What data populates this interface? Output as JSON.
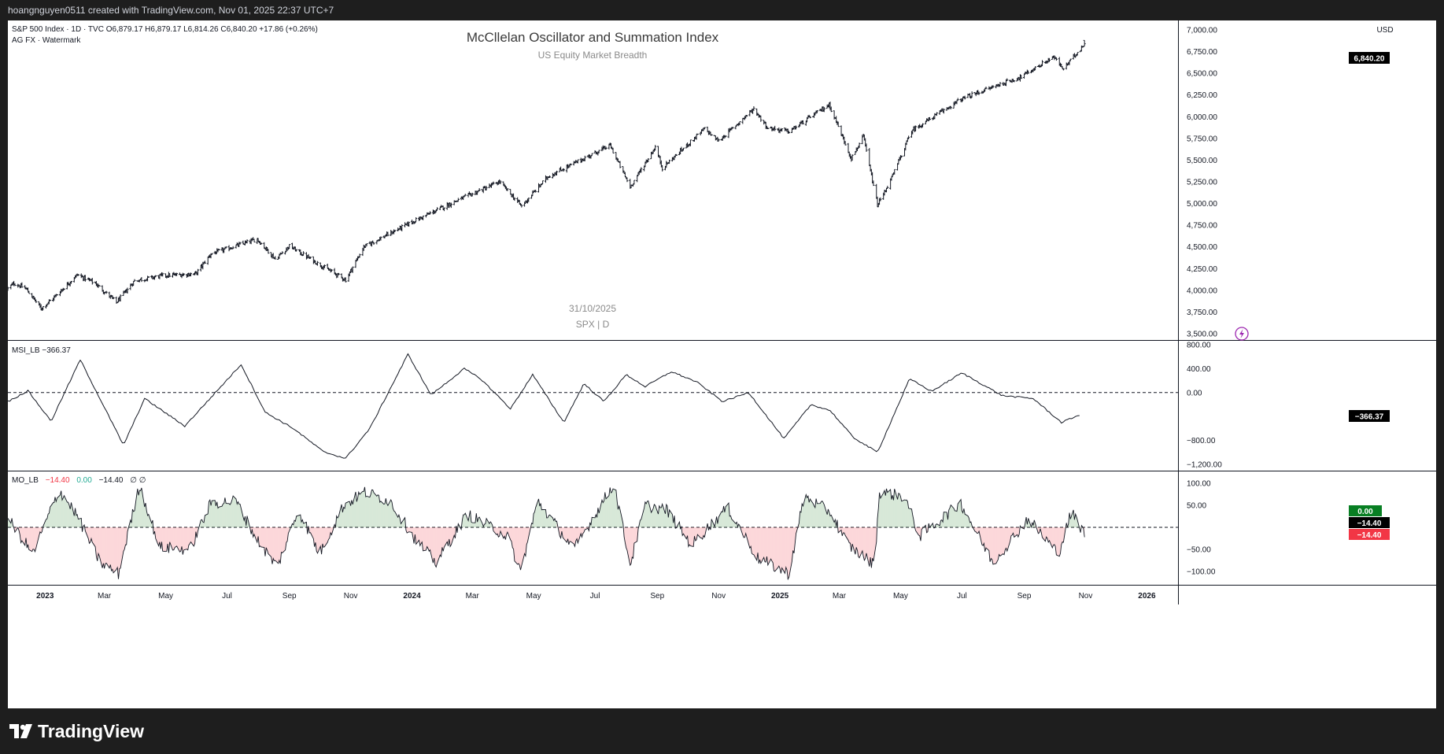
{
  "header": {
    "caption": "hoangnguyen0511 created with TradingView.com, Nov 01, 2025 22:37 UTC+7"
  },
  "main_pane": {
    "legend_line1": "S&P 500 Index · 1D · TVC  O6,879.17  H6,879.17  L6,814.26  C6,840.20  +17.86 (+0.26%)",
    "legend_line2": "AG FX · Watermark",
    "watermark_title": "McCllelan Oscillator and Summation Index",
    "watermark_subtitle": "US Equity Market Breadth",
    "watermark_date": "31/10/2025",
    "watermark_symbol": "SPX | D",
    "currency": "USD",
    "last_price_label": "6,840.20",
    "last_price_color": "#000000"
  },
  "msi_pane": {
    "legend": "MSI_LB  −366.37",
    "last_label": "−366.37"
  },
  "mo_pane": {
    "legend_name": "MO_LB",
    "legend_v1": "−14.40",
    "legend_v2": "0.00",
    "legend_v3": "−14.40",
    "legend_rest": "∅  ∅",
    "label_zero": "0.00",
    "label_val": "−14.40",
    "label_neg": "−14.40",
    "pos_color": "#388e3c",
    "neg_color": "#f23645"
  },
  "footer": {
    "brand": "TradingView"
  },
  "chart_data": [
    {
      "type": "candlestick",
      "title": "S&P 500 Index",
      "symbol": "SPX",
      "interval": "1D",
      "ylim": [
        3500,
        7000
      ],
      "y_ticks": [
        "7,000.00",
        "6,750.00",
        "6,500.00",
        "6,250.00",
        "6,000.00",
        "5,750.00",
        "5,500.00",
        "5,250.00",
        "5,000.00",
        "4,750.00",
        "4,500.00",
        "4,250.00",
        "4,000.00",
        "3,750.00",
        "3,500.00"
      ],
      "y_tick_values": [
        7000,
        6750,
        6500,
        6250,
        6000,
        5750,
        5500,
        5250,
        5000,
        4750,
        4500,
        4250,
        4000,
        3750,
        3500
      ],
      "x_range": [
        "2022-11-25",
        "2026-02-01"
      ],
      "x_labels": [
        {
          "text": "2023",
          "date": "2023-01-01",
          "bold": true
        },
        {
          "text": "Mar",
          "date": "2023-03-01"
        },
        {
          "text": "May",
          "date": "2023-05-01"
        },
        {
          "text": "Jul",
          "date": "2023-07-01"
        },
        {
          "text": "Sep",
          "date": "2023-09-01"
        },
        {
          "text": "Nov",
          "date": "2023-11-01"
        },
        {
          "text": "2024",
          "date": "2024-01-01",
          "bold": true
        },
        {
          "text": "Mar",
          "date": "2024-03-01"
        },
        {
          "text": "May",
          "date": "2024-05-01"
        },
        {
          "text": "Jul",
          "date": "2024-07-01"
        },
        {
          "text": "Sep",
          "date": "2024-09-01"
        },
        {
          "text": "Nov",
          "date": "2024-11-01"
        },
        {
          "text": "2025",
          "date": "2025-01-01",
          "bold": true
        },
        {
          "text": "Mar",
          "date": "2025-03-01"
        },
        {
          "text": "May",
          "date": "2025-05-01"
        },
        {
          "text": "Jul",
          "date": "2025-07-01"
        },
        {
          "text": "Sep",
          "date": "2025-09-01"
        },
        {
          "text": "Nov",
          "date": "2025-11-01"
        },
        {
          "text": "2026",
          "date": "2026-01-01",
          "bold": true
        }
      ],
      "close_path": [
        [
          "2022-11-25",
          4020
        ],
        [
          "2022-12-01",
          4080
        ],
        [
          "2022-12-13",
          4020
        ],
        [
          "2022-12-28",
          3790
        ],
        [
          "2023-01-10",
          3920
        ],
        [
          "2023-02-02",
          4180
        ],
        [
          "2023-02-20",
          4080
        ],
        [
          "2023-03-13",
          3860
        ],
        [
          "2023-03-31",
          4110
        ],
        [
          "2023-04-28",
          4170
        ],
        [
          "2023-05-31",
          4190
        ],
        [
          "2023-06-15",
          4420
        ],
        [
          "2023-07-31",
          4590
        ],
        [
          "2023-08-18",
          4360
        ],
        [
          "2023-09-01",
          4510
        ],
        [
          "2023-10-02",
          4290
        ],
        [
          "2023-10-27",
          4120
        ],
        [
          "2023-11-14",
          4500
        ],
        [
          "2023-12-29",
          4770
        ],
        [
          "2024-02-12",
          5020
        ],
        [
          "2024-03-28",
          5250
        ],
        [
          "2024-04-19",
          4970
        ],
        [
          "2024-05-15",
          5310
        ],
        [
          "2024-07-16",
          5670
        ],
        [
          "2024-08-05",
          5190
        ],
        [
          "2024-08-30",
          5650
        ],
        [
          "2024-09-06",
          5410
        ],
        [
          "2024-10-18",
          5860
        ],
        [
          "2024-11-01",
          5720
        ],
        [
          "2024-12-06",
          6090
        ],
        [
          "2024-12-20",
          5870
        ],
        [
          "2025-01-10",
          5830
        ],
        [
          "2025-02-19",
          6140
        ],
        [
          "2025-03-13",
          5520
        ],
        [
          "2025-03-25",
          5770
        ],
        [
          "2025-04-08",
          4980
        ],
        [
          "2025-04-22",
          5290
        ],
        [
          "2025-05-12",
          5840
        ],
        [
          "2025-06-30",
          6200
        ],
        [
          "2025-07-31",
          6340
        ],
        [
          "2025-08-29",
          6460
        ],
        [
          "2025-09-30",
          6690
        ],
        [
          "2025-10-10",
          6550
        ],
        [
          "2025-10-31",
          6840
        ]
      ],
      "last": {
        "date": "2025-10-31",
        "open": 6879.17,
        "high": 6879.17,
        "low": 6814.26,
        "close": 6840.2,
        "change": 17.86,
        "change_pct": 0.26
      }
    },
    {
      "type": "line",
      "title": "MSI_LB",
      "ylim": [
        -1200,
        800
      ],
      "y_ticks": [
        "800.00",
        "400.00",
        "0.00",
        "−800.00",
        "−1,200.00"
      ],
      "y_tick_values": [
        800,
        400,
        0,
        -800,
        -1200
      ],
      "reference_line": 0,
      "last_value": -366.37,
      "points": [
        [
          "2022-11-25",
          -150
        ],
        [
          "2022-12-15",
          30
        ],
        [
          "2023-01-07",
          -480
        ],
        [
          "2023-02-05",
          550
        ],
        [
          "2023-03-20",
          -880
        ],
        [
          "2023-04-10",
          -100
        ],
        [
          "2023-05-20",
          -560
        ],
        [
          "2023-07-15",
          470
        ],
        [
          "2023-08-08",
          -330
        ],
        [
          "2023-09-05",
          -600
        ],
        [
          "2023-10-05",
          -990
        ],
        [
          "2023-10-27",
          -1100
        ],
        [
          "2023-11-20",
          -600
        ],
        [
          "2023-12-28",
          640
        ],
        [
          "2024-01-20",
          -40
        ],
        [
          "2024-02-22",
          400
        ],
        [
          "2024-03-10",
          220
        ],
        [
          "2024-04-08",
          -270
        ],
        [
          "2024-04-30",
          300
        ],
        [
          "2024-05-31",
          -500
        ],
        [
          "2024-06-20",
          150
        ],
        [
          "2024-07-10",
          -150
        ],
        [
          "2024-08-01",
          300
        ],
        [
          "2024-08-20",
          100
        ],
        [
          "2024-09-15",
          350
        ],
        [
          "2024-10-10",
          180
        ],
        [
          "2024-11-05",
          -150
        ],
        [
          "2024-12-01",
          0
        ],
        [
          "2025-01-05",
          -770
        ],
        [
          "2025-02-01",
          -200
        ],
        [
          "2025-02-20",
          -300
        ],
        [
          "2025-03-15",
          -750
        ],
        [
          "2025-04-08",
          -1000
        ],
        [
          "2025-05-10",
          230
        ],
        [
          "2025-06-01",
          20
        ],
        [
          "2025-07-01",
          330
        ],
        [
          "2025-07-20",
          150
        ],
        [
          "2025-08-10",
          -50
        ],
        [
          "2025-09-10",
          -100
        ],
        [
          "2025-10-08",
          -500
        ],
        [
          "2025-10-27",
          -366
        ]
      ]
    },
    {
      "type": "area",
      "title": "MO_LB",
      "ylim": [
        -100,
        100
      ],
      "y_ticks": [
        "100.00",
        "50.00",
        "−50.00",
        "−100.00"
      ],
      "y_tick_values": [
        100,
        50,
        -50,
        -100
      ],
      "reference_line": 0,
      "last_value": -14.4,
      "points": [
        [
          "2022-11-25",
          20
        ],
        [
          "2022-12-20",
          -60
        ],
        [
          "2023-01-15",
          85
        ],
        [
          "2023-02-01",
          30
        ],
        [
          "2023-02-25",
          -80
        ],
        [
          "2023-03-15",
          -105
        ],
        [
          "2023-04-05",
          95
        ],
        [
          "2023-04-25",
          -45
        ],
        [
          "2023-05-25",
          -50
        ],
        [
          "2023-06-15",
          55
        ],
        [
          "2023-07-10",
          60
        ],
        [
          "2023-07-30",
          -25
        ],
        [
          "2023-08-20",
          -90
        ],
        [
          "2023-09-10",
          40
        ],
        [
          "2023-10-01",
          -60
        ],
        [
          "2023-10-25",
          50
        ],
        [
          "2023-11-15",
          80
        ],
        [
          "2023-12-10",
          60
        ],
        [
          "2024-01-05",
          -30
        ],
        [
          "2024-01-25",
          -80
        ],
        [
          "2024-02-25",
          30
        ],
        [
          "2024-04-05",
          -20
        ],
        [
          "2024-04-18",
          -100
        ],
        [
          "2024-05-05",
          60
        ],
        [
          "2024-06-10",
          -50
        ],
        [
          "2024-07-20",
          100
        ],
        [
          "2024-08-05",
          -85
        ],
        [
          "2024-08-20",
          50
        ],
        [
          "2024-09-10",
          40
        ],
        [
          "2024-10-05",
          -40
        ],
        [
          "2024-11-10",
          45
        ],
        [
          "2024-12-10",
          -70
        ],
        [
          "2025-01-10",
          -105
        ],
        [
          "2025-01-25",
          70
        ],
        [
          "2025-02-20",
          35
        ],
        [
          "2025-03-10",
          -40
        ],
        [
          "2025-04-05",
          -85
        ],
        [
          "2025-04-10",
          80
        ],
        [
          "2025-05-05",
          70
        ],
        [
          "2025-05-20",
          -20
        ],
        [
          "2025-06-30",
          55
        ],
        [
          "2025-07-20",
          -30
        ],
        [
          "2025-08-01",
          -80
        ],
        [
          "2025-09-05",
          20
        ],
        [
          "2025-10-05",
          -60
        ],
        [
          "2025-10-18",
          35
        ],
        [
          "2025-10-31",
          -14
        ]
      ]
    }
  ]
}
